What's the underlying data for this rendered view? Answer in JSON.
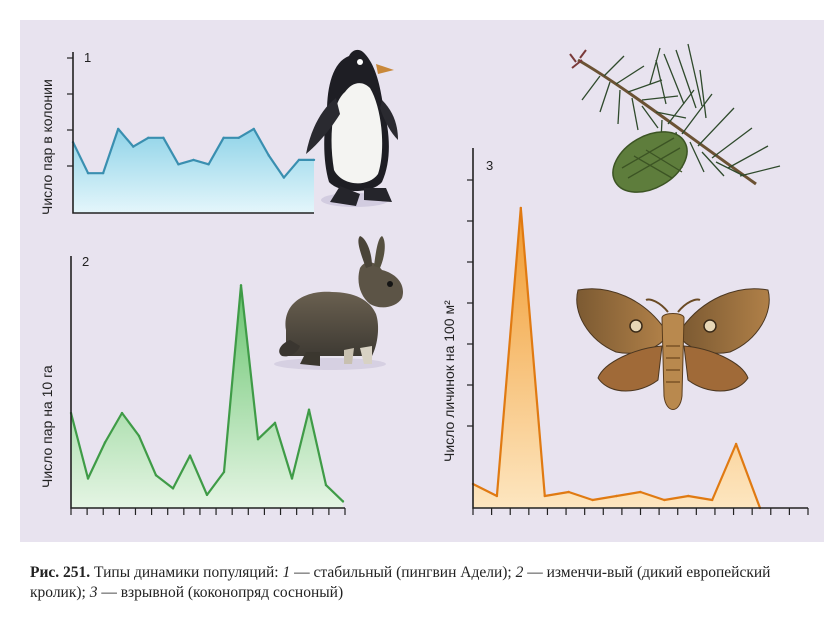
{
  "panels": [
    {
      "number": "1",
      "ylabel": "Число пар в колонии"
    },
    {
      "number": "2",
      "ylabel": "Число пар на 10 га"
    },
    {
      "number": "3",
      "ylabel": "Число личинок на 100 м²"
    }
  ],
  "chart_data": [
    {
      "type": "area",
      "panel": "1",
      "ylabel": "Число пар в колонии",
      "x": [
        0,
        1,
        2,
        3,
        4,
        5,
        6,
        7,
        8,
        9,
        10,
        11,
        12,
        13,
        14,
        15,
        16
      ],
      "values": [
        1.6,
        0.9,
        0.9,
        1.9,
        1.5,
        1.7,
        1.7,
        1.1,
        1.2,
        1.1,
        1.7,
        1.7,
        1.9,
        1.3,
        0.8,
        1.2,
        1.2
      ],
      "ylim": [
        0,
        4
      ],
      "ytick_count": 4,
      "color": "#3a8fb0"
    },
    {
      "type": "area",
      "panel": "2",
      "ylabel": "Число пар на 10 га",
      "x": [
        0,
        1,
        2,
        3,
        4,
        5,
        6,
        7,
        8,
        9,
        10,
        11,
        12,
        13,
        14,
        15,
        16
      ],
      "values": [
        2.9,
        0.9,
        2.0,
        2.9,
        2.2,
        1.0,
        0.6,
        1.6,
        0.4,
        1.1,
        6.8,
        2.1,
        2.6,
        0.9,
        3.0,
        0.7,
        0.2
      ],
      "ylim": [
        0,
        8
      ],
      "color": "#3f9b47"
    },
    {
      "type": "area",
      "panel": "3",
      "ylabel": "Число личинок на 100 м²",
      "x": [
        0,
        1,
        2,
        3,
        4,
        5,
        6,
        7,
        8,
        9,
        10,
        11,
        12
      ],
      "values": [
        0.6,
        0.3,
        7.5,
        0.3,
        0.4,
        0.2,
        0.3,
        0.4,
        0.2,
        0.3,
        0.2,
        1.6,
        0.0
      ],
      "ylim": [
        0,
        8
      ],
      "ytick_count": 7,
      "color": "#e07a12"
    }
  ],
  "caption": {
    "label": "Рис. 251.",
    "p1": " Типы динамики популяций: ",
    "n1": "1",
    "p2": " — стабильный (пингвин Адели); ",
    "n2": "2",
    "p3": " — изменчи-вый (дикий европейский кролик); ",
    "n3": "3",
    "p4": " — взрывной (коконопряд сосноный)"
  },
  "illustrations": [
    "penguin-illustration",
    "rabbit-illustration",
    "pine-branch-illustration",
    "moth-illustration"
  ]
}
